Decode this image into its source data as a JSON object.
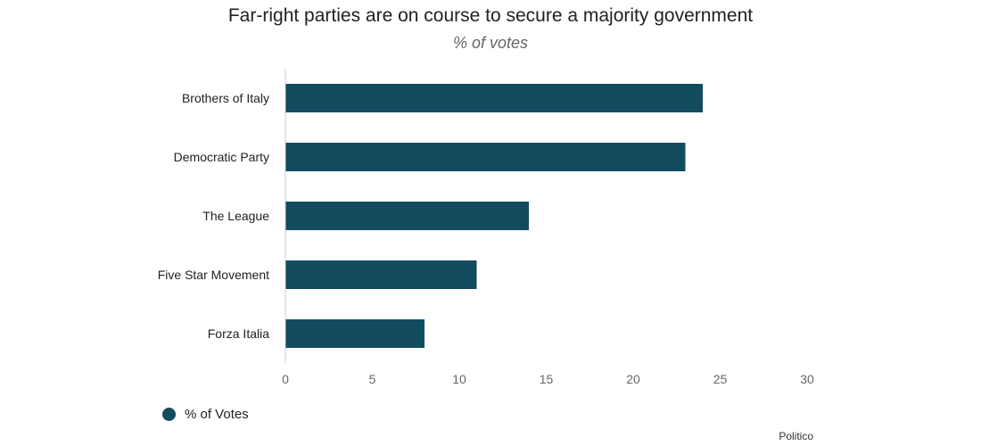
{
  "chart_data": {
    "type": "bar",
    "orientation": "horizontal",
    "title": "Far-right parties are on course to secure a majority government",
    "subtitle": "% of votes",
    "categories": [
      "Brothers of Italy",
      "Democratic Party",
      "The League",
      "Five Star Movement",
      "Forza Italia"
    ],
    "series": [
      {
        "name": "% of Votes",
        "values": [
          24,
          23,
          14,
          11,
          8
        ],
        "color": "#134b5f"
      }
    ],
    "xlim": [
      0,
      30
    ],
    "xticks": [
      0,
      5,
      10,
      15,
      20,
      25,
      30
    ],
    "xlabel": "",
    "ylabel": "",
    "grid": false,
    "legend_position": "bottom-left",
    "source": "Politico",
    "colors": {
      "bar": "#134b5f",
      "axis": "#ccccdd"
    }
  }
}
